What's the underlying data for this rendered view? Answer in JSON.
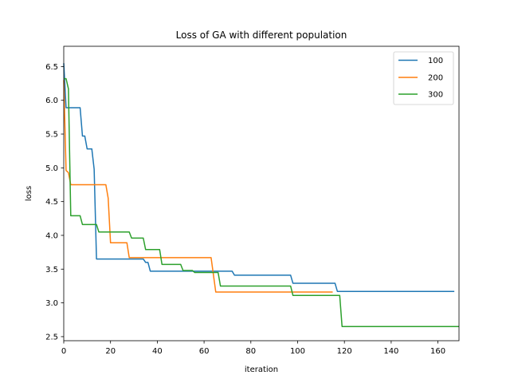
{
  "chart_data": {
    "type": "line",
    "title": "Loss of GA with different population",
    "xlabel": "iteration",
    "ylabel": "loss",
    "xlim": [
      0,
      169
    ],
    "ylim": [
      2.44,
      6.8
    ],
    "xticks": [
      0,
      20,
      40,
      60,
      80,
      100,
      120,
      140,
      160
    ],
    "xtick_labels": [
      "0",
      "20",
      "40",
      "60",
      "80",
      "100",
      "120",
      "140",
      "160"
    ],
    "yticks": [
      2.5,
      3.0,
      3.5,
      4.0,
      4.5,
      5.0,
      5.5,
      6.0,
      6.5
    ],
    "ytick_labels": [
      "2.5",
      "3.0",
      "3.5",
      "4.0",
      "4.5",
      "5.0",
      "5.5",
      "6.0",
      "6.5"
    ],
    "grid": false,
    "legend_position": "top-right",
    "series": [
      {
        "name": "100",
        "color": "#1f77b4",
        "points": [
          [
            0,
            6.55
          ],
          [
            1,
            5.89
          ],
          [
            7,
            5.89
          ],
          [
            8,
            5.47
          ],
          [
            9,
            5.47
          ],
          [
            10,
            5.28
          ],
          [
            12,
            5.28
          ],
          [
            13,
            4.98
          ],
          [
            14,
            3.65
          ],
          [
            34,
            3.65
          ],
          [
            35,
            3.6
          ],
          [
            36,
            3.6
          ],
          [
            37,
            3.47
          ],
          [
            72,
            3.47
          ],
          [
            73,
            3.41
          ],
          [
            97,
            3.41
          ],
          [
            98,
            3.29
          ],
          [
            116,
            3.29
          ],
          [
            117,
            3.17
          ],
          [
            167,
            3.17
          ]
        ]
      },
      {
        "name": "200",
        "color": "#ff7f0e",
        "points": [
          [
            0,
            6.3
          ],
          [
            1,
            4.96
          ],
          [
            2,
            4.93
          ],
          [
            3,
            4.75
          ],
          [
            18,
            4.75
          ],
          [
            19,
            4.55
          ],
          [
            20,
            3.89
          ],
          [
            27,
            3.89
          ],
          [
            28,
            3.67
          ],
          [
            63,
            3.67
          ],
          [
            65,
            3.16
          ],
          [
            115,
            3.16
          ]
        ]
      },
      {
        "name": "300",
        "color": "#2ca02c",
        "points": [
          [
            0,
            6.32
          ],
          [
            1,
            6.32
          ],
          [
            2,
            6.17
          ],
          [
            3,
            4.29
          ],
          [
            7,
            4.29
          ],
          [
            8,
            4.16
          ],
          [
            14,
            4.16
          ],
          [
            15,
            4.05
          ],
          [
            28,
            4.05
          ],
          [
            29,
            3.96
          ],
          [
            34,
            3.96
          ],
          [
            35,
            3.79
          ],
          [
            41,
            3.79
          ],
          [
            42,
            3.57
          ],
          [
            50,
            3.57
          ],
          [
            51,
            3.48
          ],
          [
            55,
            3.48
          ],
          [
            56,
            3.45
          ],
          [
            66,
            3.45
          ],
          [
            67,
            3.25
          ],
          [
            97,
            3.25
          ],
          [
            98,
            3.11
          ],
          [
            118,
            3.11
          ],
          [
            119,
            2.65
          ],
          [
            169,
            2.65
          ]
        ]
      }
    ]
  }
}
